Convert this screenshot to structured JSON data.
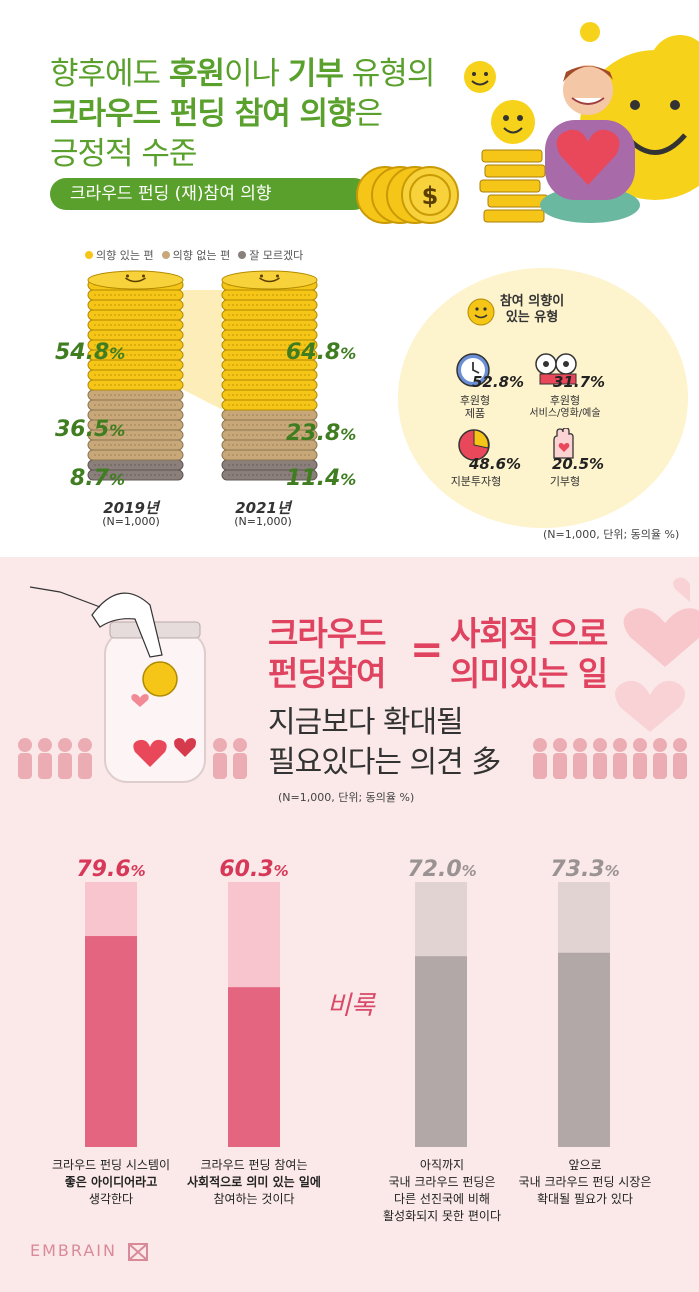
{
  "header": {
    "title_l1_a": "향후에도 ",
    "title_l1_b": "후원",
    "title_l1_c": "이나 ",
    "title_l1_d": "기부",
    "title_l1_e": " 유형의",
    "title_l2_a": "크라우드 펀딩 참여 의향",
    "title_l2_b": "은",
    "title_l3": "긍정적 수준",
    "pill": "크라우드 펀딩 (재)참여 의향"
  },
  "legend": [
    {
      "label": "의향 있는 편",
      "color": "#f5c518"
    },
    {
      "label": "의향 없는 편",
      "color": "#c8a878"
    },
    {
      "label": "잘 모르겠다",
      "color": "#8a7f7a"
    }
  ],
  "years": [
    {
      "year": "2019년",
      "n": "(N=1,000)"
    },
    {
      "year": "2021년",
      "n": "(N=1,000)"
    }
  ],
  "circle": {
    "title": "참여 의향이 있는 유형",
    "title_l1": "참여 의향이",
    "title_l2": "있는 유형",
    "types": [
      {
        "pct": "52.8%",
        "label_l1": "후원형",
        "label_l2": "제품",
        "icon": "clock-icon"
      },
      {
        "pct": "31.7%",
        "label_l1": "후원형",
        "label_l2": "서비스/영화/예술",
        "icon": "film-reel-icon"
      },
      {
        "pct": "48.6%",
        "label_l1": "지분투자형",
        "label_l2": "",
        "icon": "pie-chart-icon"
      },
      {
        "pct": "20.5%",
        "label_l1": "기부형",
        "label_l2": "",
        "icon": "heart-hand-icon"
      }
    ]
  },
  "note1": "(N=1,000, 단위; 동의율 %)",
  "section2": {
    "pink_l1": "크라우드",
    "pink_l2": "펀딩참여",
    "equals": "=",
    "pink_r1": "사회적 으로",
    "pink_r2": "의미있는 일",
    "dark_l1": "지금보다 확대될",
    "dark_l2": "필요있다는 의견 多",
    "note": "(N=1,000, 단위; 동의율 %)",
    "biruk": "비록",
    "logo": "EMBRAIN"
  },
  "bar_captions": [
    {
      "l1": "크라우드 펀딩 시스템이",
      "l2": "좋은 아이디어라고",
      "l3": "생각한다",
      "l4": ""
    },
    {
      "l1": "크라우드 펀딩 참여는",
      "l2": "사회적으로 의미 있는 일에",
      "l3": "참여하는 것이다",
      "l4": ""
    },
    {
      "l1": "아직까지",
      "l2": "국내 크라우드 펀딩은",
      "l3": "다른 선진국에 비해",
      "l4": "활성화되지 못한 편이다"
    },
    {
      "l1": "앞으로",
      "l2": "국내 크라우드 펀딩 시장은",
      "l3": "확대될 필요가 있다",
      "l4": ""
    }
  ],
  "chart_data": [
    {
      "type": "bar",
      "title": "크라우드 펀딩 (재)참여 의향",
      "categories": [
        "2019년",
        "2021년"
      ],
      "series": [
        {
          "name": "의향 있는 편",
          "values": [
            54.8,
            64.8
          ]
        },
        {
          "name": "의향 없는 편",
          "values": [
            36.5,
            23.8
          ]
        },
        {
          "name": "잘 모르겠다",
          "values": [
            8.7,
            11.4
          ]
        }
      ],
      "unit": "%",
      "stacked": true,
      "labels": [
        [
          "54.8",
          "36.5",
          "8.7"
        ],
        [
          "64.8",
          "23.8",
          "11.4"
        ]
      ]
    },
    {
      "type": "bar",
      "categories": [
        "크라우드 펀딩 시스템이 좋은 아이디어라고 생각한다",
        "크라우드 펀딩 참여는 사회적으로 의미 있는 일에 참여하는 것이다",
        "아직까지 국내 크라우드 펀딩은 다른 선진국에 비해 활성화되지 못한 편이다",
        "앞으로 국내 크라우드 펀딩 시장은 확대될 필요가 있다"
      ],
      "values": [
        79.6,
        60.3,
        72.0,
        73.3
      ],
      "labels": [
        "79.6",
        "60.3",
        "72.0",
        "73.3"
      ],
      "unit": "%",
      "ylim": [
        0,
        100
      ],
      "colors": [
        "#e4657f",
        "#e4657f",
        "#b3a8a8",
        "#b3a8a8"
      ],
      "label_colors": [
        "#d83858",
        "#d83858",
        "#9b9393",
        "#9b9393"
      ]
    }
  ]
}
